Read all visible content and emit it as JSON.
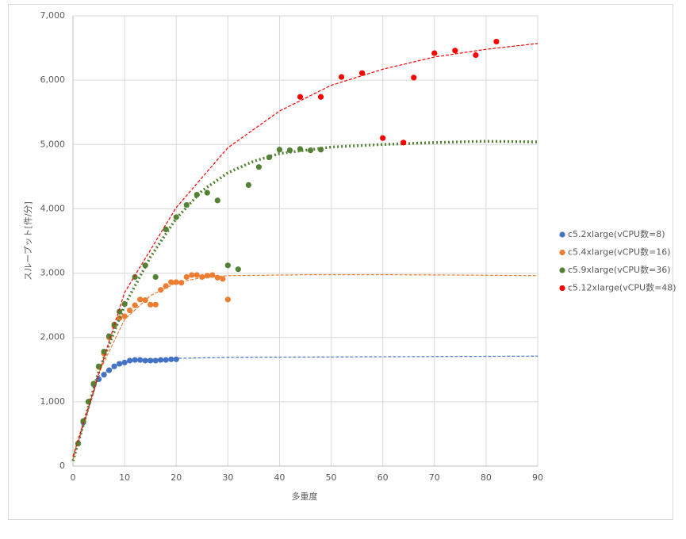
{
  "chart_data": {
    "type": "scatter",
    "x_label": "多重度",
    "y_label": "スループット[件/分]",
    "xlim": [
      0,
      90
    ],
    "xticks": [
      0,
      10,
      20,
      30,
      40,
      50,
      60,
      70,
      80,
      90
    ],
    "ylim": [
      0,
      7000
    ],
    "yticks": [
      0,
      {
        "value": 1000,
        "label": "1,000"
      },
      {
        "value": 2000,
        "label": "2,000"
      },
      {
        "value": 3000,
        "label": "3,000"
      },
      {
        "value": 4000,
        "label": "4,000"
      },
      {
        "value": 5000,
        "label": "5,000"
      },
      {
        "value": 6000,
        "label": "6,000"
      },
      {
        "value": 7000,
        "label": "7,000"
      }
    ],
    "grid": true,
    "legend": "right",
    "series": [
      {
        "name": "c5.2xlarge(vCPU数=8)",
        "color": "#4472c4",
        "x": [
          1,
          2,
          3,
          4,
          5,
          6,
          7,
          8,
          9,
          10,
          11,
          12,
          13,
          14,
          15,
          16,
          17,
          18,
          19,
          20
        ],
        "values": [
          350,
          680,
          1000,
          1270,
          1350,
          1420,
          1490,
          1550,
          1590,
          1610,
          1640,
          1650,
          1650,
          1640,
          1640,
          1640,
          1650,
          1650,
          1660,
          1660
        ],
        "trend": {
          "style": "dashed",
          "x": [
            0,
            5,
            10,
            15,
            20,
            30,
            45,
            60,
            90
          ],
          "values": [
            100,
            1400,
            1620,
            1660,
            1675,
            1690,
            1695,
            1700,
            1710
          ]
        }
      },
      {
        "name": "c5.4xlarge(vCPU数=16)",
        "color": "#ed7d31",
        "x": [
          1,
          2,
          3,
          4,
          5,
          6,
          7,
          8,
          9,
          10,
          11,
          12,
          13,
          14,
          15,
          16,
          17,
          18,
          19,
          20,
          21,
          22,
          23,
          24,
          25,
          26,
          27,
          28,
          29,
          30
        ],
        "values": [
          350,
          700,
          1000,
          1280,
          1540,
          1750,
          2000,
          2180,
          2300,
          2330,
          2420,
          2500,
          2590,
          2580,
          2510,
          2510,
          2740,
          2800,
          2860,
          2860,
          2850,
          2940,
          2970,
          2970,
          2940,
          2960,
          2970,
          2930,
          2910,
          2590
        ],
        "trend": {
          "style": "dashed",
          "x": [
            0,
            5,
            10,
            15,
            20,
            25,
            30,
            45,
            60,
            75,
            90
          ],
          "values": [
            100,
            1450,
            2280,
            2650,
            2850,
            2930,
            2960,
            2975,
            2975,
            2970,
            2960
          ]
        }
      },
      {
        "name": "c5.9xlarge(vCPU数=36)",
        "color": "#548235",
        "x": [
          1,
          2,
          3,
          4,
          5,
          6,
          7,
          8,
          9,
          10,
          12,
          14,
          16,
          18,
          20,
          22,
          24,
          26,
          28,
          30,
          32,
          34,
          36,
          38,
          40,
          42,
          44,
          46,
          48
        ],
        "values": [
          350,
          700,
          1000,
          1280,
          1550,
          1780,
          2020,
          2200,
          2400,
          2520,
          2940,
          3120,
          2940,
          3680,
          3870,
          4060,
          4220,
          4250,
          4130,
          3120,
          3060,
          4370,
          4650,
          4800,
          4920,
          4910,
          4930,
          4910,
          4920
        ],
        "trend": {
          "style": "dotted",
          "x": [
            0,
            5,
            10,
            15,
            20,
            25,
            30,
            35,
            40,
            50,
            60,
            70,
            80,
            90
          ],
          "values": [
            80,
            1480,
            2500,
            3250,
            3850,
            4280,
            4560,
            4740,
            4860,
            4960,
            5000,
            5030,
            5050,
            5040
          ]
        }
      },
      {
        "name": "c5.12xlarge(vCPU数=48)",
        "color": "#ff0000",
        "x": [
          44,
          48,
          52,
          56,
          60,
          64,
          66,
          70,
          74,
          78,
          82
        ],
        "values": [
          5740,
          5740,
          6050,
          6110,
          5100,
          5030,
          6040,
          6420,
          6460,
          6390,
          6600
        ],
        "trend": {
          "style": "dashed",
          "x": [
            0,
            10,
            20,
            30,
            40,
            50,
            60,
            70,
            80,
            90
          ],
          "values": [
            150,
            2700,
            4020,
            4950,
            5520,
            5920,
            6170,
            6360,
            6480,
            6570
          ]
        }
      }
    ]
  }
}
